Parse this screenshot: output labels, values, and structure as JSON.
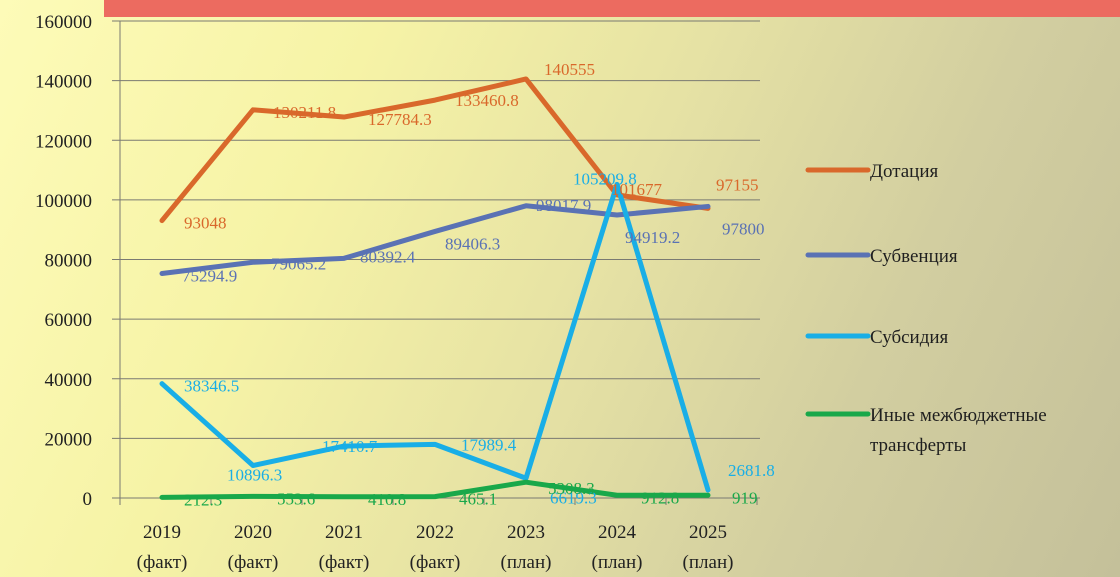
{
  "chart_data": {
    "type": "line",
    "title": "",
    "xlabel": "",
    "ylabel": "",
    "ylim": [
      0,
      160000
    ],
    "yticks": [
      "0",
      "20000",
      "40000",
      "60000",
      "80000",
      "100000",
      "120000",
      "140000",
      "160000"
    ],
    "grid": true,
    "legend_position": "right",
    "categories": [
      [
        "2019",
        "(факт)"
      ],
      [
        "2020",
        "(факт)"
      ],
      [
        "2021",
        "(факт)"
      ],
      [
        "2022",
        "(факт)"
      ],
      [
        "2023",
        "(план)"
      ],
      [
        "2024",
        "(план)"
      ],
      [
        "2025",
        "(план)"
      ]
    ],
    "series": [
      {
        "name": "Дотация",
        "color": "#d9682b",
        "values": [
          93048,
          130211.8,
          127784.3,
          133460.8,
          140555,
          101677,
          97155
        ],
        "labels": [
          "93048",
          "130211.8",
          "127784.3",
          "133460.8",
          "140555",
          "101677",
          "97155"
        ]
      },
      {
        "name": "Субвенция",
        "color": "#5a72b4",
        "values": [
          75294.9,
          79065.2,
          80392.4,
          89406.3,
          98017.9,
          94919.2,
          97800
        ],
        "labels": [
          "75294.9",
          "79065.2",
          "80392.4",
          "89406.3",
          "98017.9",
          "94919.2",
          "97800"
        ]
      },
      {
        "name": "Субсидия",
        "color": "#19aee6",
        "values": [
          38346.5,
          10896.3,
          17410.7,
          17989.4,
          6619.3,
          105209.8,
          2681.8
        ],
        "labels": [
          "38346.5",
          "10896.3",
          "17410.7",
          "17989.4",
          "6619.3",
          "105209.8",
          "2681.8"
        ]
      },
      {
        "name": "Иные межбюджетные трансферты",
        "legend_lines": [
          "Иные межбюджетные",
          "трансферты"
        ],
        "color": "#19a84a",
        "values": [
          212.3,
          553.6,
          410.8,
          465.1,
          5308.3,
          912.8,
          919
        ],
        "labels": [
          "212.3",
          "553.6",
          "410.8",
          "465.1",
          "5308.3",
          "912.8",
          "919"
        ]
      }
    ]
  }
}
